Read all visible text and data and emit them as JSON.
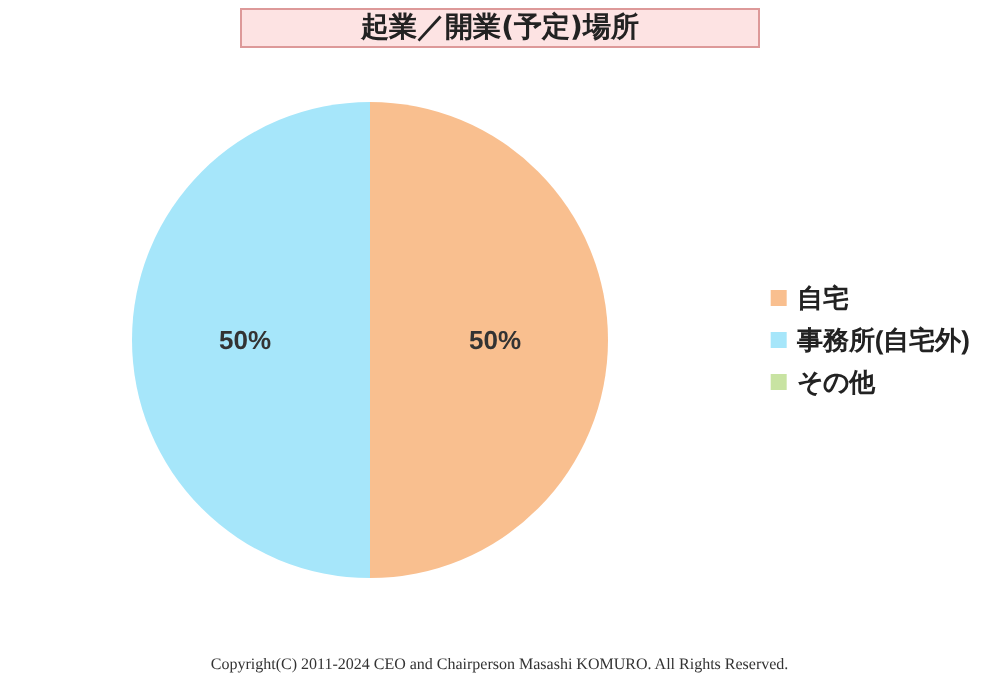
{
  "chart_data": {
    "type": "pie",
    "title": "起業／開業(予定)場所",
    "categories": [
      "自宅",
      "事務所(自宅外)",
      "その他"
    ],
    "values": [
      50,
      50,
      0
    ],
    "colors": [
      "#f9bf8f",
      "#a6e6fa",
      "#c8e3a2"
    ],
    "value_labels": [
      "50%",
      "50%",
      null
    ],
    "legend": "right",
    "annotations": [
      "Copyright(C) 2011-2024 CEO and Chairperson Masashi KOMURO. All Rights Reserved."
    ]
  }
}
